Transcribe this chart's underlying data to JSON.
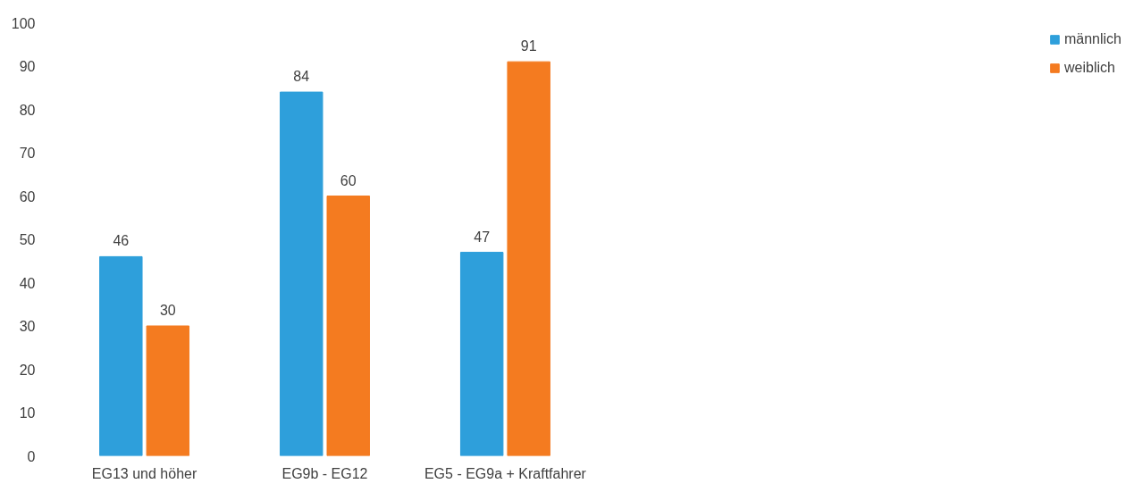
{
  "chart_data": {
    "type": "bar",
    "categories": [
      "EG13 und höher",
      "EG9b - EG12",
      "EG5 - EG9a + Kraftfahrer"
    ],
    "series": [
      {
        "name": "männlich",
        "color": "#2e9fdb",
        "values": [
          46,
          84,
          47
        ]
      },
      {
        "name": "weiblich",
        "color": "#f47b20",
        "values": [
          30,
          60,
          91
        ]
      }
    ],
    "ylim": [
      0,
      100
    ],
    "yticks": [
      0,
      10,
      20,
      30,
      40,
      50,
      60,
      70,
      80,
      90,
      100
    ],
    "grid": false,
    "legend": "right",
    "data_labels": true
  }
}
